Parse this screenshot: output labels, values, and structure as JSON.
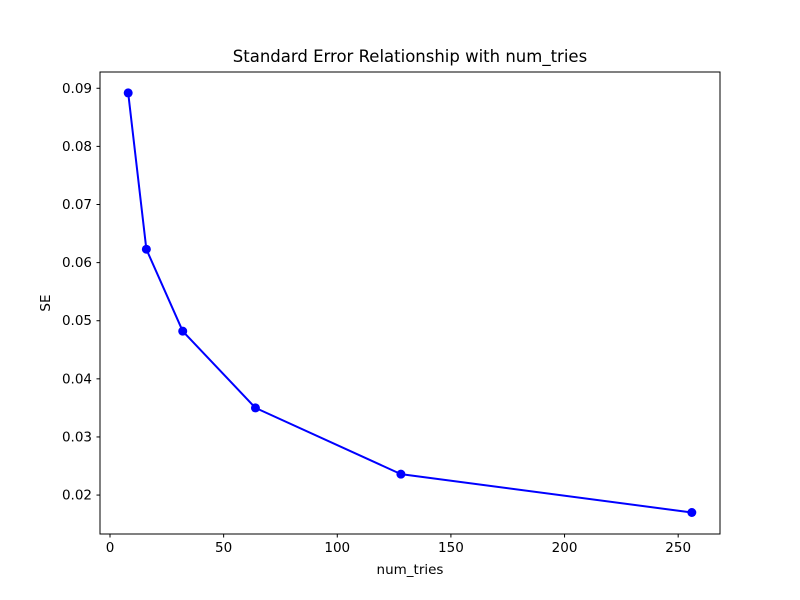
{
  "figure": {
    "background_color": "#ffffff",
    "text_color": "#000000",
    "spine_color": "#000000"
  },
  "chart_data": {
    "type": "line",
    "title": "Standard Error Relationship with num_tries",
    "xlabel": "num_tries",
    "ylabel": "SE",
    "x": [
      8,
      16,
      32,
      64,
      128,
      256
    ],
    "y": [
      0.0892,
      0.0623,
      0.0482,
      0.035,
      0.0236,
      0.017
    ],
    "xticks": [
      0,
      50,
      100,
      150,
      200,
      250
    ],
    "yticks": [
      0.02,
      0.03,
      0.04,
      0.05,
      0.06,
      0.07,
      0.08,
      0.09
    ],
    "xlim": [
      -4.4,
      268.4
    ],
    "ylim": [
      0.0133,
      0.0928
    ],
    "line_color": "#0000ff",
    "marker": "o",
    "marker_color": "#0000ff",
    "grid": false,
    "legend_position": "none"
  }
}
